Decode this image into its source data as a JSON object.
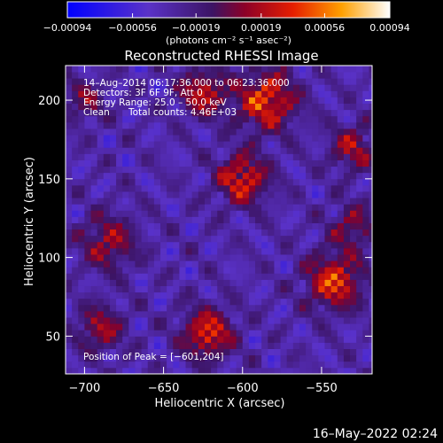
{
  "chart_data": {
    "type": "heatmap",
    "title": "Reconstructed RHESSI Image",
    "xlabel": "Heliocentric X (arcsec)",
    "ylabel": "Heliocentric Y (arcsec)",
    "xlim": [
      -712,
      -518
    ],
    "ylim": [
      26,
      222
    ],
    "x_ticks": [
      -700,
      -650,
      -600,
      -550
    ],
    "x_tick_labels": [
      "−700",
      "−650",
      "−600",
      "−550"
    ],
    "y_ticks": [
      50,
      100,
      150,
      200
    ],
    "y_tick_labels": [
      "50",
      "100",
      "150",
      "200"
    ],
    "colorbar": {
      "min": -0.00094,
      "max": 0.00094,
      "ticks": [
        -0.00094,
        -0.00056,
        -0.00019,
        0.00019,
        0.00056,
        0.00094
      ],
      "tick_labels": [
        "−0.00094",
        "−0.00056",
        "−0.00019",
        "0.00019",
        "0.00056",
        "0.00094"
      ],
      "unit_label": "(photons cm⁻² s⁻¹ asec⁻²)"
    },
    "annotations": {
      "time_range": "14–Aug–2014 06:17:36.000 to 06:23:36.000",
      "detectors": "Detectors: 3F 6F 9F, Att 0",
      "energy_range": "Energy Range: 25.0 – 50.0 keV",
      "method": "Clean",
      "total_counts": "Total counts: 4.46E+03",
      "peak_position": "Position of Peak = [−601,204]"
    },
    "sources": [
      {
        "x": -600,
        "y": 150,
        "amplitude": 0.00085,
        "sigma": 11
      },
      {
        "x": -585,
        "y": 200,
        "amplitude": 0.0009,
        "sigma": 13
      },
      {
        "x": -625,
        "y": 205,
        "amplitude": 0.00075,
        "sigma": 10
      },
      {
        "x": -542,
        "y": 85,
        "amplitude": 0.0009,
        "sigma": 12
      },
      {
        "x": -622,
        "y": 52,
        "amplitude": 0.00085,
        "sigma": 11
      },
      {
        "x": -690,
        "y": 55,
        "amplitude": 0.0006,
        "sigma": 10
      },
      {
        "x": -685,
        "y": 110,
        "amplitude": 0.0006,
        "sigma": 12
      },
      {
        "x": -530,
        "y": 170,
        "amplitude": 0.0006,
        "sigma": 10
      },
      {
        "x": -530,
        "y": 120,
        "amplitude": 0.0005,
        "sigma": 10
      },
      {
        "x": -700,
        "y": 200,
        "amplitude": 0.00045,
        "sigma": 9
      }
    ]
  },
  "footer": {
    "date": "16–May–2022 02:24"
  }
}
